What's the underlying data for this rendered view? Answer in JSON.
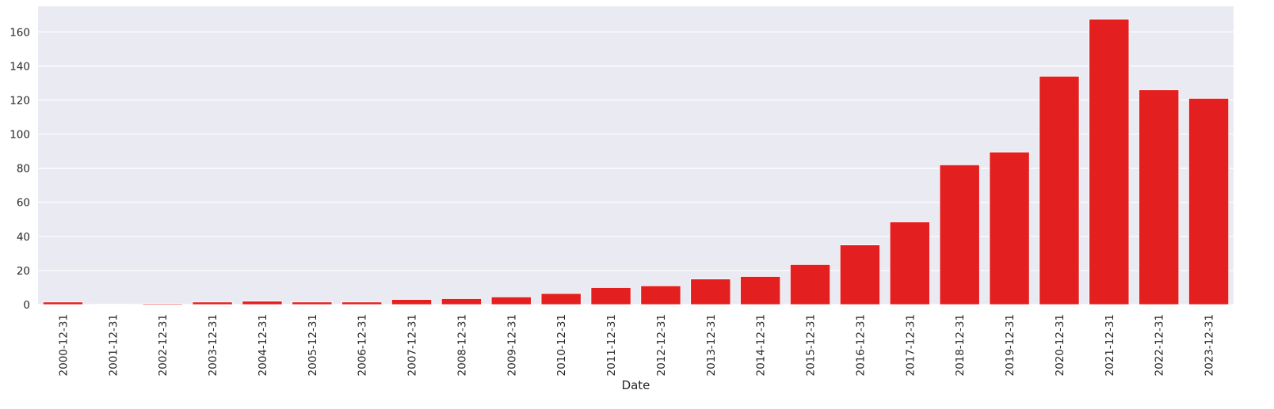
{
  "chart_data": {
    "type": "bar",
    "title": "",
    "xlabel": "Date",
    "ylabel": "",
    "categories": [
      "2000-12-31",
      "2001-12-31",
      "2002-12-31",
      "2003-12-31",
      "2004-12-31",
      "2005-12-31",
      "2006-12-31",
      "2007-12-31",
      "2008-12-31",
      "2009-12-31",
      "2010-12-31",
      "2011-12-31",
      "2012-12-31",
      "2013-12-31",
      "2014-12-31",
      "2015-12-31",
      "2016-12-31",
      "2017-12-31",
      "2018-12-31",
      "2019-12-31",
      "2020-12-31",
      "2021-12-31",
      "2022-12-31",
      "2023-12-31"
    ],
    "values": [
      1.5,
      0.2,
      0.6,
      1.5,
      2,
      1.5,
      1.5,
      3,
      3.5,
      4.5,
      6.5,
      10,
      11,
      15,
      16.5,
      23.5,
      35,
      48.5,
      82,
      89.5,
      134,
      167.5,
      126,
      121
    ],
    "ylim": [
      0,
      175
    ],
    "yticks": [
      0,
      20,
      40,
      60,
      80,
      100,
      120,
      140,
      160
    ],
    "grid": true,
    "colors": {
      "bar": "#e31f1f",
      "plot_background": "#eaeaf2",
      "grid": "#ffffff",
      "text": "#262626"
    }
  }
}
